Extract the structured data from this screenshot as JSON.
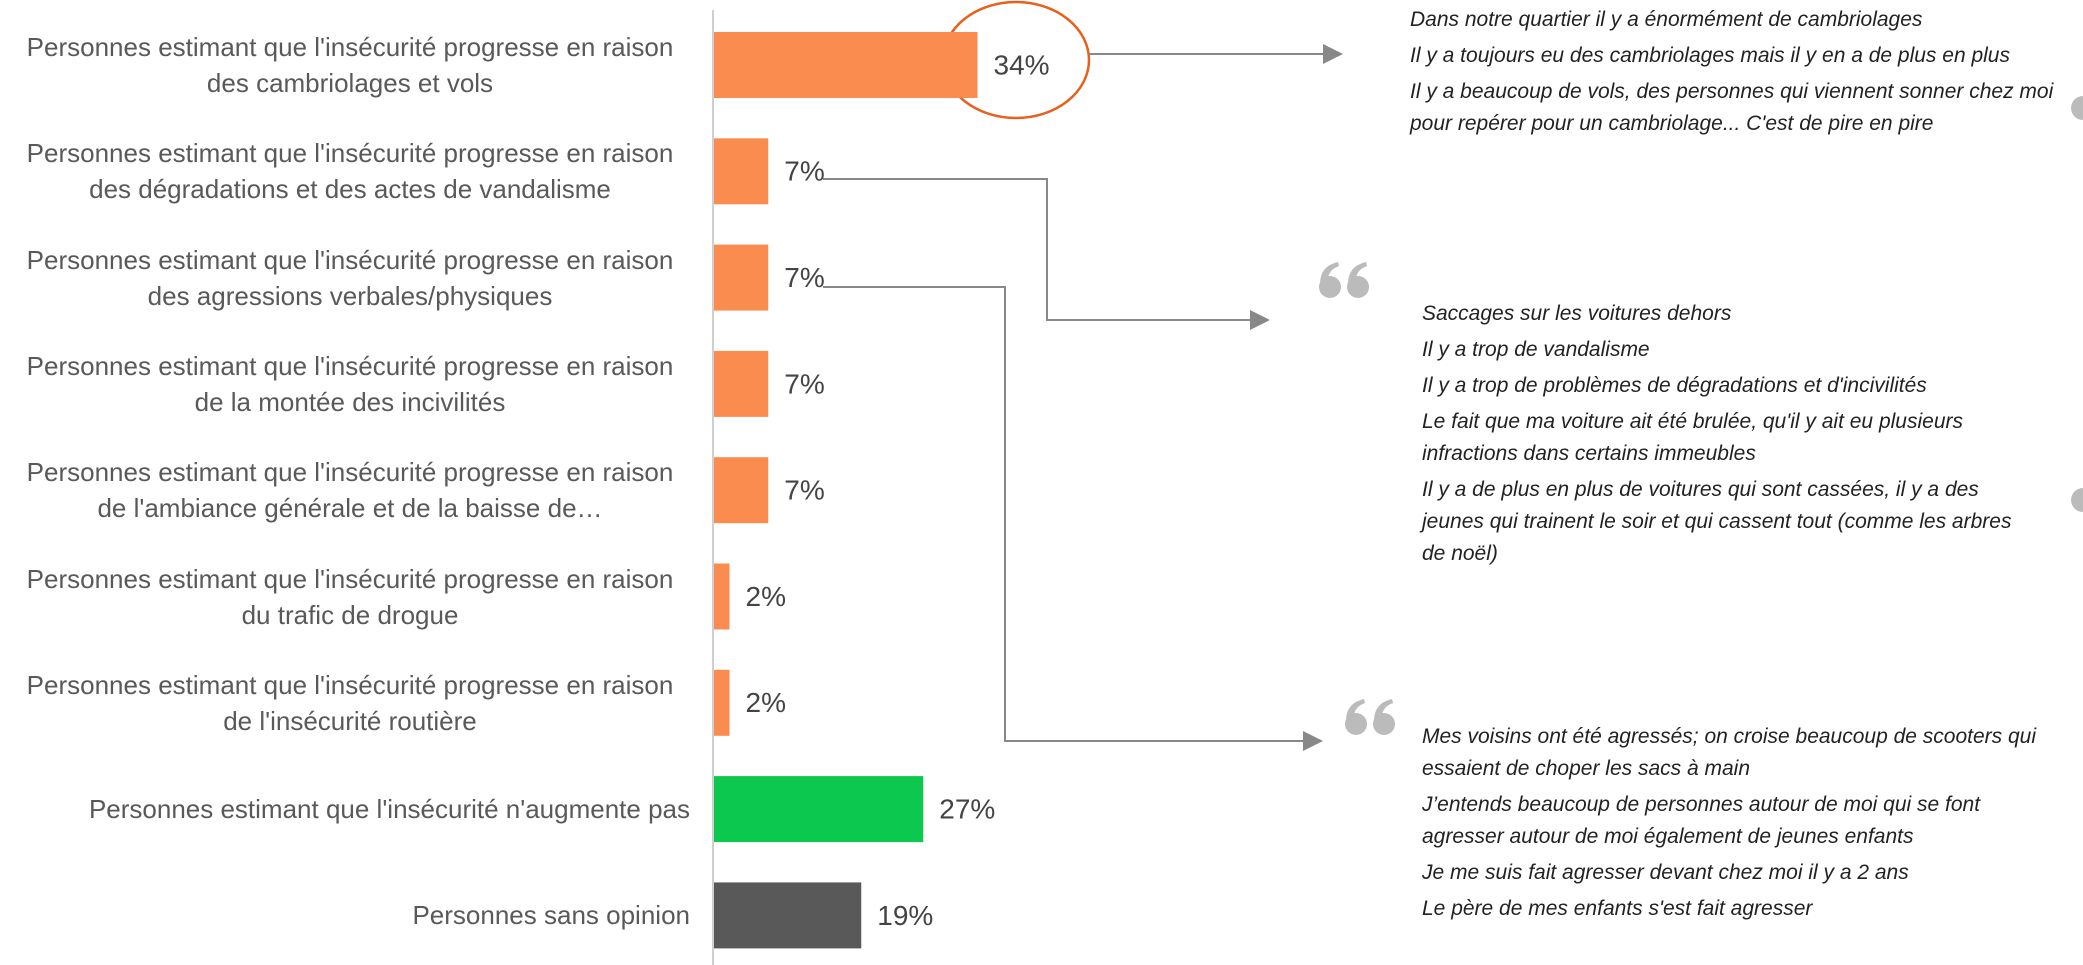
{
  "chart_data": {
    "type": "bar",
    "orientation": "horizontal",
    "categories": [
      "Personnes estimant que l'insécurité progresse en raison des cambriolages et vols",
      "Personnes estimant que l'insécurité progresse en raison des dégradations et des actes de vandalisme",
      "Personnes estimant que l'insécurité progresse en raison des agressions verbales/physiques",
      "Personnes estimant que l'insécurité progresse en raison de la montée des incivilités",
      "Personnes estimant que l'insécurité progresse en raison de l'ambiance générale et de la baisse de…",
      "Personnes estimant que l'insécurité progresse en raison du trafic de drogue",
      "Personnes estimant que l'insécurité progresse en raison de l'insécurité routière",
      "Personnes estimant que l'insécurité n'augmente pas",
      "Personnes sans opinion"
    ],
    "values": [
      34,
      7,
      7,
      7,
      7,
      2,
      2,
      27,
      19
    ],
    "value_labels": [
      "34%",
      "7%",
      "7%",
      "7%",
      "7%",
      "2%",
      "2%",
      "27%",
      "19%"
    ],
    "colors": [
      "#fb8c50",
      "#fb8c50",
      "#fb8c50",
      "#fb8c50",
      "#fb8c50",
      "#fb8c50",
      "#fb8c50",
      "#0cc84f",
      "#595959"
    ]
  },
  "quotes": [
    [
      "Dans notre quartier il y a énormément de cambriolages",
      "Il y a toujours eu des cambriolages mais il y en a de plus en plus",
      "Il y a beaucoup de vols, des personnes qui viennent sonner chez moi pour repérer pour un cambriolage... C'est de pire en pire"
    ],
    [
      "Saccages sur les voitures dehors",
      "Il y a trop de vandalisme",
      "Il y a trop de problèmes de dégradations et d'incivilités",
      "Le fait que ma voiture ait été brulée, qu'il y ait eu plusieurs infractions dans certains immeubles",
      "Il y a de plus en plus de voitures qui sont cassées, il y a des jeunes qui trainent le soir et qui cassent tout (comme les arbres de noël)"
    ],
    [
      "Mes voisins ont été agressés; on croise beaucoup de scooters qui essaient de choper les sacs à main",
      "J’entends beaucoup de personnes autour de moi qui se font agresser autour de moi également de jeunes enfants",
      "Je me suis fait agresser devant chez moi il y a 2 ans",
      "Le père de mes enfants s'est fait agresser"
    ]
  ]
}
